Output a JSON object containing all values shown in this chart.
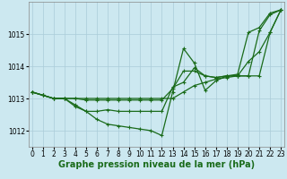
{
  "xlabel": "Graphe pression niveau de la mer (hPa)",
  "ylabel": "",
  "bg_color": "#cce8f0",
  "line_color": "#1a6b1a",
  "grid_color": "#aaccd8",
  "x_ticks": [
    0,
    1,
    2,
    3,
    4,
    5,
    6,
    7,
    8,
    9,
    10,
    11,
    12,
    13,
    14,
    15,
    16,
    17,
    18,
    19,
    20,
    21,
    22,
    23
  ],
  "y_ticks": [
    1012,
    1013,
    1014,
    1015
  ],
  "ylim": [
    1011.5,
    1016.0
  ],
  "xlim": [
    -0.3,
    23.3
  ],
  "series": [
    [
      1013.2,
      1013.1,
      1013.0,
      1013.0,
      1012.8,
      1012.6,
      1012.35,
      1012.2,
      1012.15,
      1012.1,
      1012.05,
      1012.0,
      1011.85,
      1013.2,
      1014.55,
      1014.1,
      1013.25,
      1013.55,
      1013.7,
      1013.75,
      1015.05,
      1015.2,
      1015.65,
      1015.75
    ],
    [
      1013.2,
      1013.1,
      1013.0,
      1013.0,
      1012.75,
      1012.6,
      1012.6,
      1012.65,
      1012.6,
      1012.6,
      1012.6,
      1012.6,
      1012.6,
      1013.35,
      1013.5,
      1013.95,
      1013.7,
      1013.65,
      1013.7,
      1013.7,
      1013.7,
      1015.1,
      1015.6,
      1015.75
    ],
    [
      1013.2,
      1013.1,
      1013.0,
      1013.0,
      1013.0,
      1012.95,
      1012.95,
      1012.95,
      1012.95,
      1012.95,
      1012.95,
      1012.95,
      1012.95,
      1013.3,
      1013.85,
      1013.85,
      1013.7,
      1013.65,
      1013.7,
      1013.7,
      1013.7,
      1013.7,
      1015.05,
      1015.75
    ],
    [
      1013.2,
      1013.1,
      1013.0,
      1013.0,
      1013.0,
      1013.0,
      1013.0,
      1013.0,
      1013.0,
      1013.0,
      1013.0,
      1013.0,
      1013.0,
      1013.0,
      1013.2,
      1013.4,
      1013.5,
      1013.6,
      1013.65,
      1013.7,
      1014.15,
      1014.45,
      1015.05,
      1015.75
    ]
  ],
  "marker": "+",
  "marker_size": 3,
  "linewidth": 0.9,
  "tick_fontsize": 5.5,
  "label_fontsize": 7
}
